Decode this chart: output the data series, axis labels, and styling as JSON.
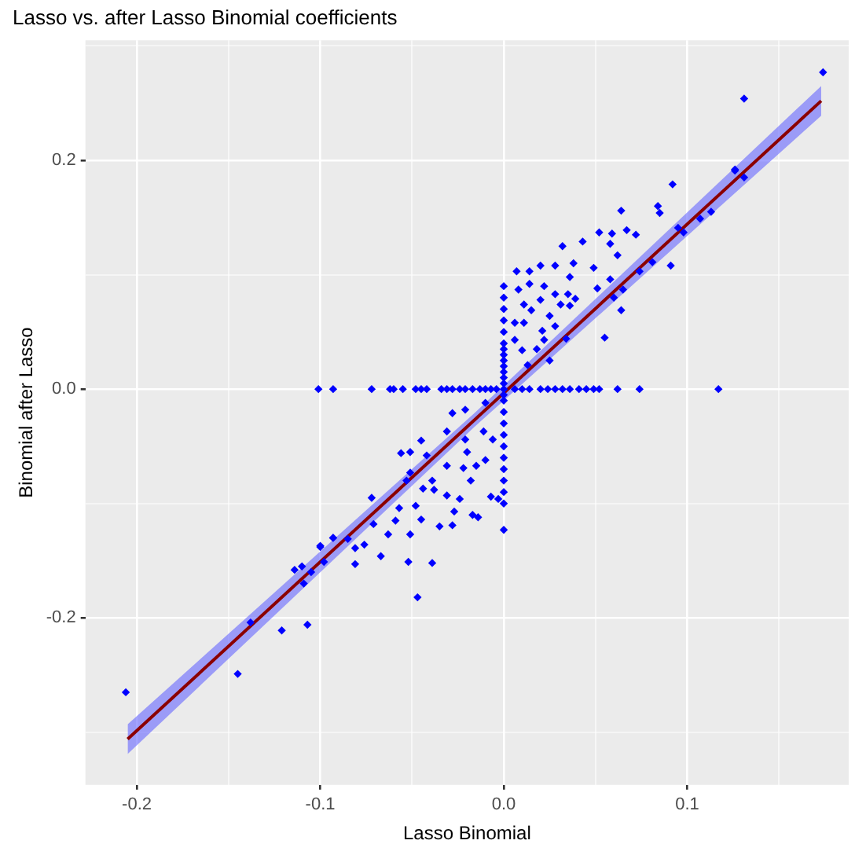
{
  "chart_data": {
    "type": "scatter",
    "title": "Lasso vs. after Lasso Binomial coefficients",
    "xlabel": "Lasso Binomial",
    "ylabel": "Binomial after Lasso",
    "xlim": [
      -0.228,
      0.188
    ],
    "ylim": [
      -0.346,
      0.305
    ],
    "xticks": [
      -0.2,
      {
        "value": -0.15,
        "label": null
      },
      -0.1,
      {
        "value": -0.05,
        "label": null
      },
      {
        "value": 0,
        "label": "0.0"
      },
      {
        "value": 0.05,
        "label": null
      },
      0.1,
      {
        "value": 0.15,
        "label": null
      }
    ],
    "yticks": [
      {
        "value": -0.3,
        "label": null
      },
      -0.2,
      {
        "value": -0.1,
        "label": null
      },
      {
        "value": 0,
        "label": "0.0"
      },
      {
        "value": 0.1,
        "label": null
      },
      0.2,
      {
        "value": 0.3,
        "label": null
      }
    ],
    "grid": true,
    "legend": false,
    "series": [
      {
        "marker": "diamond",
        "color": "#0000ff",
        "x": [
          -0.101,
          -0.093,
          -0.072,
          -0.062,
          -0.06,
          -0.055,
          -0.048,
          -0.045,
          -0.042,
          -0.034,
          -0.031,
          -0.028,
          -0.024,
          -0.021,
          -0.017,
          -0.013,
          -0.01,
          -0.007,
          -0.004,
          0.006,
          0.01,
          0.014,
          0.02,
          0.024,
          0.028,
          0.032,
          0.036,
          0.041,
          0.045,
          0.049,
          0.052,
          0.062,
          0.074,
          0.117,
          0,
          0,
          0,
          0,
          0,
          0,
          0,
          0,
          0,
          0,
          0,
          0,
          0,
          0,
          0,
          0,
          0,
          0,
          0,
          0,
          0,
          0,
          0,
          0,
          0,
          0,
          0.007,
          0.014,
          0.02,
          0.028,
          0.032,
          0.038,
          0.043,
          0.052,
          0.059,
          0.067,
          0.072,
          0.064,
          0.084,
          0.085,
          0.092,
          0.058,
          0.062,
          0.049,
          0.014,
          0.008,
          0.022,
          0.028,
          0.036,
          0.035,
          0.039,
          0.051,
          0.058,
          0.011,
          0.015,
          0.02,
          0.025,
          0.031,
          0.036,
          0.006,
          0.011,
          0.021,
          0.028,
          0.034,
          0.022,
          0.006,
          0.01,
          0.018,
          0.025,
          0.013,
          0.055,
          0.06,
          0.064,
          0.065,
          0.091,
          0.098,
          0.095,
          0.107,
          0.113,
          0.081,
          0.074,
          0.126,
          0.131,
          0.131,
          0.174,
          0.126,
          -0.028,
          -0.021,
          -0.01,
          -0.031,
          -0.021,
          -0.011,
          -0.006,
          -0.045,
          -0.051,
          -0.056,
          -0.042,
          -0.031,
          -0.02,
          -0.022,
          -0.015,
          -0.01,
          -0.051,
          -0.039,
          -0.044,
          -0.038,
          -0.031,
          -0.024,
          -0.018,
          -0.007,
          -0.003,
          -0.072,
          -0.057,
          -0.048,
          -0.027,
          -0.045,
          -0.035,
          -0.028,
          -0.017,
          -0.014,
          -0.071,
          -0.059,
          -0.063,
          -0.051,
          -0.076,
          -0.081,
          -0.067,
          -0.081,
          -0.052,
          -0.039,
          -0.047,
          -0.093,
          -0.1,
          -0.053,
          -0.206,
          -0.145,
          -0.138,
          -0.121,
          -0.107,
          -0.114,
          -0.11,
          -0.105,
          -0.109,
          -0.1,
          -0.093,
          -0.085,
          -0.098
        ],
        "values": [
          0,
          0,
          0,
          0,
          0,
          0,
          0,
          0,
          0,
          0,
          0,
          0,
          0,
          0,
          0,
          0,
          0,
          0,
          0,
          0,
          0,
          0,
          0,
          0,
          0,
          0,
          0,
          0,
          0,
          0,
          0,
          0,
          0,
          0,
          0.09,
          0.08,
          0.07,
          0.06,
          0.05,
          0.04,
          0.035,
          0.03,
          0.025,
          0.02,
          0.015,
          0.01,
          0.005,
          0,
          -0.005,
          -0.01,
          -0.02,
          -0.03,
          -0.04,
          -0.05,
          -0.06,
          -0.07,
          -0.08,
          -0.09,
          -0.1,
          -0.123,
          0.103,
          0.103,
          0.108,
          0.108,
          0.125,
          0.11,
          0.129,
          0.137,
          0.136,
          0.139,
          0.135,
          0.156,
          0.16,
          0.154,
          0.179,
          0.127,
          0.117,
          0.106,
          0.092,
          0.087,
          0.09,
          0.083,
          0.098,
          0.083,
          0.079,
          0.088,
          0.096,
          0.074,
          0.069,
          0.078,
          0.064,
          0.074,
          0.073,
          0.058,
          0.058,
          0.051,
          0.055,
          0.044,
          0.043,
          0.043,
          0.034,
          0.035,
          0.025,
          0.021,
          0.045,
          0.08,
          0.069,
          0.087,
          0.108,
          0.137,
          0.141,
          0.149,
          0.155,
          0.111,
          0.103,
          0.192,
          0.185,
          0.254,
          0.277,
          0.191,
          -0.021,
          -0.018,
          -0.012,
          -0.037,
          -0.044,
          -0.037,
          -0.044,
          -0.045,
          -0.055,
          -0.056,
          -0.058,
          -0.067,
          -0.055,
          -0.069,
          -0.067,
          -0.062,
          -0.073,
          -0.08,
          -0.087,
          -0.088,
          -0.093,
          -0.096,
          -0.08,
          -0.094,
          -0.096,
          -0.095,
          -0.104,
          -0.102,
          -0.107,
          -0.114,
          -0.12,
          -0.119,
          -0.11,
          -0.112,
          -0.118,
          -0.115,
          -0.127,
          -0.127,
          -0.136,
          -0.139,
          -0.146,
          -0.153,
          -0.151,
          -0.152,
          -0.182,
          -0.13,
          -0.137,
          -0.08,
          -0.265,
          -0.249,
          -0.204,
          -0.211,
          -0.206,
          -0.158,
          -0.155,
          -0.16,
          -0.17,
          -0.138,
          -0.13,
          -0.131,
          -0.151
        ]
      },
      {
        "type": "line",
        "color": "#8b0000",
        "x": [
          -0.205,
          -0.016,
          0.173
        ],
        "values": [
          -0.306,
          -0.027,
          0.252
        ],
        "lower": [
          -0.319,
          -0.033,
          0.239
        ],
        "upper": [
          -0.293,
          -0.021,
          0.265
        ]
      }
    ]
  }
}
